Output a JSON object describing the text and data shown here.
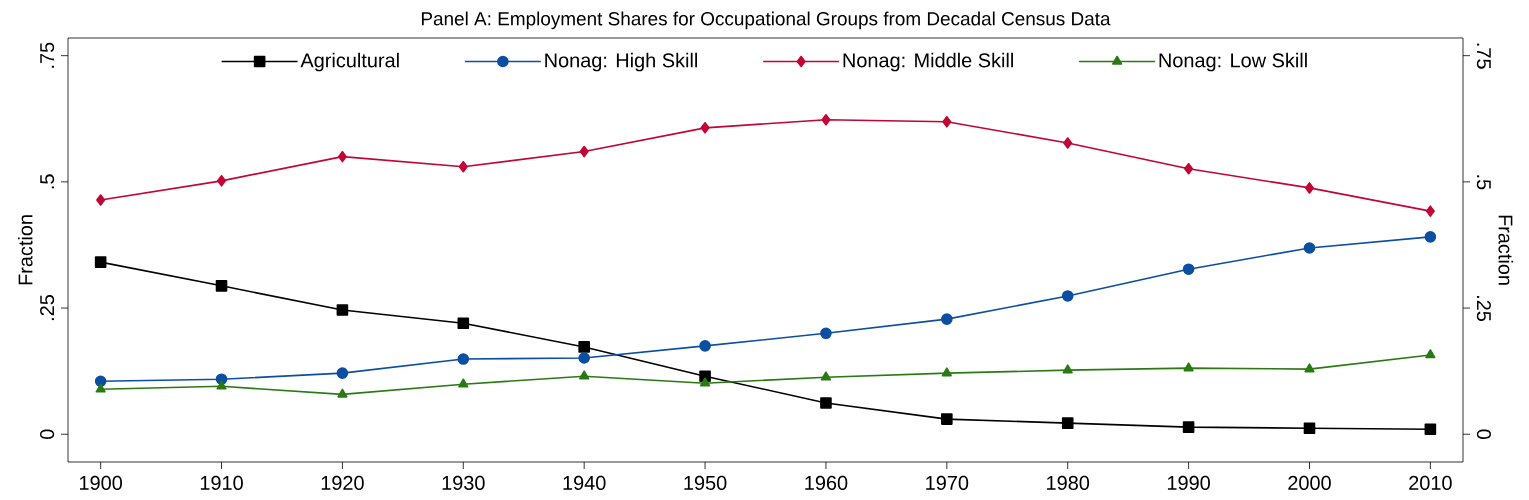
{
  "chart_data": {
    "type": "line",
    "title": "Panel A: Employment Shares for Occupational Groups from Decadal Census Data",
    "ylabel": "Fraction",
    "y2label": "Fraction",
    "x": [
      1900,
      1910,
      1920,
      1930,
      1940,
      1950,
      1960,
      1970,
      1980,
      1990,
      2000,
      2010
    ],
    "xlim": [
      1897.3,
      2012.7
    ],
    "xticks": [
      1900,
      1910,
      1920,
      1930,
      1940,
      1950,
      1960,
      1970,
      1980,
      1990,
      2000,
      2010
    ],
    "ylim": [
      -0.055,
      0.785
    ],
    "yticks": [
      0,
      {
        "value": 0.25,
        "label": ".25"
      },
      {
        "value": 0.5,
        "label": ".5"
      },
      {
        "value": 0.75,
        "label": ".75"
      }
    ],
    "y2lim": [
      -0.055,
      0.785
    ],
    "y2ticks": [
      0,
      {
        "value": 0.25,
        "label": ".25"
      },
      {
        "value": 0.5,
        "label": ".5"
      },
      {
        "value": 0.75,
        "label": ".75"
      }
    ],
    "grid": false,
    "legend": "top",
    "line_style": "solid",
    "series": [
      {
        "name": "Agricultural",
        "color": "#000000",
        "marker": "square",
        "values": [
          0.341,
          0.294,
          0.246,
          0.22,
          0.173,
          0.115,
          0.062,
          0.03,
          0.022,
          0.014,
          0.012,
          0.01
        ]
      },
      {
        "name": "Nonag: High Skill",
        "color": "#0b4ea2",
        "marker": "circle",
        "values": [
          0.105,
          0.109,
          0.121,
          0.149,
          0.151,
          0.175,
          0.2,
          0.228,
          0.274,
          0.327,
          0.369,
          0.391
        ]
      },
      {
        "name": "Nonag: Middle Skill",
        "color": "#c10534",
        "marker": "diamond",
        "values": [
          0.464,
          0.502,
          0.55,
          0.53,
          0.56,
          0.607,
          0.623,
          0.619,
          0.577,
          0.526,
          0.488,
          0.442
        ]
      },
      {
        "name": "Nonag: Low Skill",
        "color": "#2a7a14",
        "marker": "triangle",
        "values": [
          0.089,
          0.095,
          0.079,
          0.099,
          0.115,
          0.101,
          0.113,
          0.121,
          0.127,
          0.131,
          0.129,
          0.157
        ]
      }
    ]
  }
}
